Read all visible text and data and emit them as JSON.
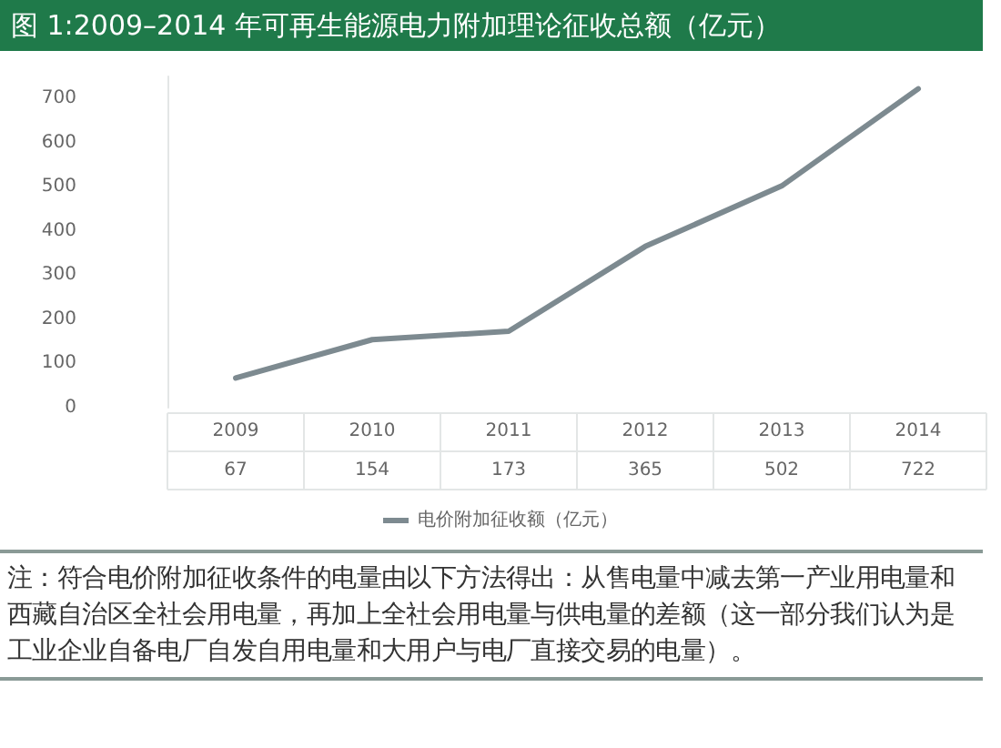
{
  "chart_data": {
    "type": "line",
    "title": "图 1:2009–2014 年可再生能源电力附加理论征收总额（亿元）",
    "categories": [
      "2009",
      "2010",
      "2011",
      "2012",
      "2013",
      "2014"
    ],
    "series": [
      {
        "name": "电价附加征收额（亿元）",
        "color": "#7d8a90",
        "values": [
          67,
          154,
          173,
          365,
          502,
          722
        ]
      }
    ],
    "ylim": [
      0,
      750
    ],
    "yticks": [
      0,
      100,
      200,
      300,
      400,
      500,
      600,
      700
    ],
    "grid": false,
    "legend": "bottom",
    "marker": "none",
    "line_style": "solid",
    "data_labels": true,
    "annotations": [
      "注：符合电价附加征收条件的电量由以下方法得出：从售电量中减去第一产业用电量和西藏自治区全社会用电量，再加上全社会用电量与供电量的差额（这一部分我们认为是工业企业自备电厂自发自用电量和大用户与电厂直接交易的电量）。"
    ]
  }
}
